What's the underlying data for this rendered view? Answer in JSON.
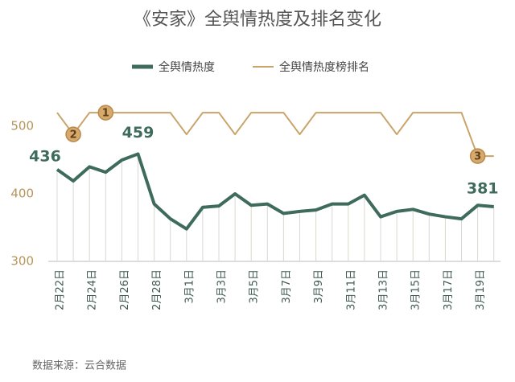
{
  "chart_data": {
    "type": "line",
    "title": "《安家》全舆情热度及排名变化",
    "source": "数据来源：云合数据",
    "categories": [
      "2月22日",
      null,
      "2月24日",
      null,
      "2月26日",
      null,
      "2月28日",
      null,
      "3月1日",
      null,
      "3月3日",
      null,
      "3月5日",
      null,
      "3月7日",
      null,
      "3月9日",
      null,
      "3月11日",
      null,
      "3月13日",
      null,
      "3月15日",
      null,
      "3月17日",
      null,
      "3月19日",
      null
    ],
    "series": [
      {
        "name": "全舆情热度",
        "color": "#3e6b5b",
        "values": [
          436,
          419,
          440,
          432,
          450,
          459,
          385,
          363,
          348,
          380,
          382,
          400,
          383,
          385,
          371,
          374,
          376,
          385,
          385,
          398,
          366,
          374,
          377,
          370,
          366,
          363,
          383,
          381
        ]
      },
      {
        "name": "全舆情热度榜排名",
        "color": "#c9a46a",
        "axis": "y2",
        "values": [
          1,
          2,
          1,
          1,
          1,
          1,
          1,
          1,
          2,
          1,
          1,
          2,
          1,
          1,
          1,
          2,
          1,
          1,
          1,
          1,
          1,
          2,
          1,
          1,
          1,
          1,
          3,
          3
        ]
      }
    ],
    "ylim": [
      300,
      560
    ],
    "yticks": [
      300,
      400,
      500
    ],
    "y2lim": [
      7.85,
      -0.24
    ],
    "legend": "top"
  }
}
